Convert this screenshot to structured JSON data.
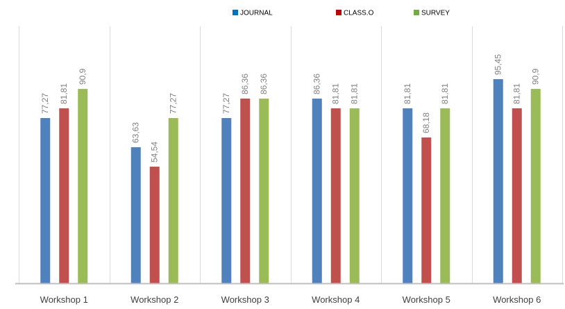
{
  "chart_data": {
    "type": "bar",
    "title": "",
    "xlabel": "",
    "ylabel": "",
    "ylim": [
      0,
      100
    ],
    "grid": false,
    "legend_position": "top",
    "categories": [
      "Workshop 1",
      "Workshop 2",
      "Workshop 3",
      "Workshop 4",
      "Workshop 5",
      "Workshop 6"
    ],
    "series": [
      {
        "name": "JOURNAL",
        "color": "#4f81bd",
        "values": [
          77.27,
          63.63,
          77.27,
          86.36,
          81.81,
          95.45
        ],
        "labels": [
          "77,27",
          "63,63",
          "77,27",
          "86,36",
          "81,81",
          "95,45"
        ]
      },
      {
        "name": "CLASS.O",
        "color": "#c0504d",
        "values": [
          81.81,
          54.54,
          86.36,
          81.81,
          68.18,
          81.81
        ],
        "labels": [
          "81,81",
          "54,54",
          "86,36",
          "81,81",
          "68,18",
          "81,81"
        ]
      },
      {
        "name": "SURVEY",
        "color": "#9bbb59",
        "values": [
          90.9,
          77.27,
          86.36,
          81.81,
          81.81,
          90.9
        ],
        "labels": [
          "90,9",
          "77,27",
          "86,36",
          "81,81",
          "81,81",
          "90,9"
        ]
      }
    ],
    "colors": {
      "axis": "#bfbfbf",
      "separator": "#d9d9d9",
      "legend_journal": "#0070c0",
      "legend_class": "#c00000",
      "legend_survey": "#70ad47"
    }
  }
}
